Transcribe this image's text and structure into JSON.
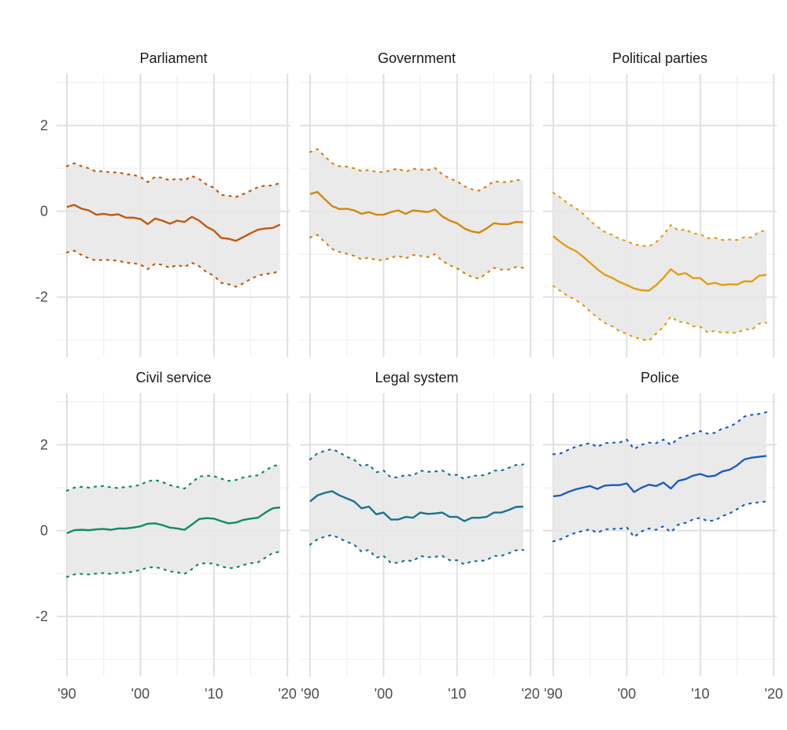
{
  "chart_data": {
    "type": "line",
    "layout": "facet grid, 2 rows x 3 columns, shared axes",
    "x_ticks": [
      1990,
      2000,
      2010,
      2020
    ],
    "x_tick_labels": [
      "'90",
      "'00",
      "'10",
      "'20"
    ],
    "x_minor_ticks": [
      1995,
      2005,
      2015
    ],
    "xlim": [
      1990,
      2020
    ],
    "y_ticks": [
      -2,
      0,
      2
    ],
    "y_tick_labels": [
      "-2",
      "0",
      "2"
    ],
    "y_minor_ticks": [
      -3,
      -1,
      1,
      3
    ],
    "ylim": [
      -3.4,
      3.2
    ],
    "grid": true,
    "band_color": "#e8e8e8",
    "grid_major_color": "#e0e0e0",
    "grid_minor_color": "#f0f0f0",
    "years": [
      1990,
      1991,
      1992,
      1993,
      1994,
      1995,
      1996,
      1997,
      1998,
      1999,
      2000,
      2001,
      2002,
      2003,
      2004,
      2005,
      2006,
      2007,
      2008,
      2009,
      2010,
      2011,
      2012,
      2013,
      2014,
      2015,
      2016,
      2017,
      2018,
      2019
    ],
    "panels": [
      {
        "title": "Parliament",
        "color": "#c05a10",
        "mean": [
          0.1,
          0.15,
          0.06,
          0.02,
          -0.08,
          -0.06,
          -0.09,
          -0.07,
          -0.15,
          -0.15,
          -0.18,
          -0.3,
          -0.17,
          -0.22,
          -0.29,
          -0.22,
          -0.25,
          -0.13,
          -0.22,
          -0.36,
          -0.45,
          -0.62,
          -0.64,
          -0.69,
          -0.6,
          -0.51,
          -0.43,
          -0.4,
          -0.39,
          -0.31
        ],
        "upper": [
          1.05,
          1.12,
          1.05,
          1.0,
          0.92,
          0.94,
          0.9,
          0.91,
          0.86,
          0.85,
          0.8,
          0.68,
          0.8,
          0.78,
          0.72,
          0.76,
          0.72,
          0.82,
          0.75,
          0.62,
          0.55,
          0.38,
          0.36,
          0.33,
          0.4,
          0.48,
          0.56,
          0.6,
          0.6,
          0.66
        ],
        "lower": [
          -0.96,
          -0.92,
          -1.02,
          -1.1,
          -1.15,
          -1.13,
          -1.14,
          -1.15,
          -1.2,
          -1.21,
          -1.24,
          -1.35,
          -1.22,
          -1.25,
          -1.32,
          -1.25,
          -1.3,
          -1.2,
          -1.28,
          -1.42,
          -1.5,
          -1.67,
          -1.7,
          -1.76,
          -1.68,
          -1.58,
          -1.5,
          -1.46,
          -1.45,
          -1.38
        ]
      },
      {
        "title": "Government",
        "color": "#d4870f",
        "mean": [
          0.4,
          0.45,
          0.28,
          0.12,
          0.05,
          0.06,
          0.02,
          -0.06,
          -0.02,
          -0.08,
          -0.08,
          -0.02,
          0.02,
          -0.06,
          0.02,
          0.0,
          -0.02,
          0.04,
          -0.12,
          -0.22,
          -0.28,
          -0.4,
          -0.47,
          -0.5,
          -0.4,
          -0.28,
          -0.3,
          -0.3,
          -0.25,
          -0.26
        ],
        "upper": [
          1.38,
          1.45,
          1.28,
          1.12,
          1.05,
          1.04,
          1.0,
          0.94,
          0.96,
          0.92,
          0.91,
          0.96,
          0.99,
          0.92,
          0.99,
          0.97,
          0.96,
          1.01,
          0.86,
          0.76,
          0.7,
          0.58,
          0.51,
          0.48,
          0.58,
          0.7,
          0.68,
          0.68,
          0.73,
          0.72
        ],
        "lower": [
          -0.61,
          -0.55,
          -0.72,
          -0.88,
          -0.95,
          -0.99,
          -1.04,
          -1.12,
          -1.08,
          -1.14,
          -1.14,
          -1.08,
          -1.04,
          -1.1,
          -1.02,
          -1.04,
          -1.07,
          -1.0,
          -1.16,
          -1.26,
          -1.33,
          -1.44,
          -1.53,
          -1.57,
          -1.45,
          -1.32,
          -1.36,
          -1.36,
          -1.3,
          -1.32
        ]
      },
      {
        "title": "Political parties",
        "color": "#e0a010",
        "mean": [
          -0.58,
          -0.72,
          -0.84,
          -0.92,
          -1.05,
          -1.2,
          -1.35,
          -1.48,
          -1.55,
          -1.65,
          -1.72,
          -1.8,
          -1.84,
          -1.85,
          -1.72,
          -1.55,
          -1.35,
          -1.48,
          -1.44,
          -1.56,
          -1.56,
          -1.7,
          -1.67,
          -1.72,
          -1.7,
          -1.71,
          -1.63,
          -1.64,
          -1.5,
          -1.48
        ],
        "upper": [
          0.43,
          0.32,
          0.18,
          0.08,
          -0.05,
          -0.22,
          -0.36,
          -0.48,
          -0.55,
          -0.64,
          -0.7,
          -0.77,
          -0.8,
          -0.82,
          -0.72,
          -0.55,
          -0.32,
          -0.45,
          -0.42,
          -0.52,
          -0.53,
          -0.63,
          -0.62,
          -0.67,
          -0.66,
          -0.67,
          -0.6,
          -0.61,
          -0.48,
          -0.44
        ],
        "lower": [
          -1.74,
          -1.86,
          -1.98,
          -2.06,
          -2.18,
          -2.33,
          -2.48,
          -2.6,
          -2.68,
          -2.79,
          -2.86,
          -2.94,
          -2.98,
          -3.02,
          -2.85,
          -2.7,
          -2.45,
          -2.58,
          -2.58,
          -2.68,
          -2.69,
          -2.82,
          -2.79,
          -2.83,
          -2.82,
          -2.84,
          -2.75,
          -2.76,
          -2.62,
          -2.6
        ]
      },
      {
        "title": "Civil service",
        "color": "#13896b",
        "mean": [
          -0.06,
          0.01,
          0.02,
          0.01,
          0.03,
          0.04,
          0.02,
          0.05,
          0.05,
          0.07,
          0.1,
          0.16,
          0.17,
          0.13,
          0.07,
          0.05,
          0.02,
          0.14,
          0.27,
          0.29,
          0.28,
          0.22,
          0.17,
          0.19,
          0.25,
          0.28,
          0.3,
          0.42,
          0.52,
          0.54
        ],
        "upper": [
          0.93,
          1.0,
          1.02,
          1.0,
          1.03,
          1.04,
          1.01,
          0.99,
          1.02,
          1.03,
          1.07,
          1.15,
          1.18,
          1.13,
          1.06,
          1.02,
          0.98,
          1.12,
          1.26,
          1.28,
          1.27,
          1.21,
          1.16,
          1.18,
          1.24,
          1.27,
          1.29,
          1.4,
          1.5,
          1.54
        ],
        "lower": [
          -1.08,
          -1.02,
          -1.01,
          -1.02,
          -1.0,
          -0.99,
          -1.01,
          -0.98,
          -0.99,
          -0.95,
          -0.92,
          -0.86,
          -0.85,
          -0.89,
          -0.95,
          -0.97,
          -1.01,
          -0.9,
          -0.77,
          -0.76,
          -0.77,
          -0.83,
          -0.88,
          -0.86,
          -0.8,
          -0.76,
          -0.74,
          -0.63,
          -0.52,
          -0.49
        ]
      },
      {
        "title": "Legal system",
        "color": "#1b7391",
        "mean": [
          0.68,
          0.82,
          0.88,
          0.92,
          0.82,
          0.75,
          0.68,
          0.52,
          0.56,
          0.38,
          0.42,
          0.26,
          0.26,
          0.32,
          0.3,
          0.42,
          0.39,
          0.4,
          0.42,
          0.32,
          0.32,
          0.22,
          0.3,
          0.3,
          0.32,
          0.42,
          0.42,
          0.48,
          0.55,
          0.56
        ],
        "upper": [
          1.66,
          1.8,
          1.86,
          1.9,
          1.82,
          1.72,
          1.65,
          1.5,
          1.54,
          1.36,
          1.4,
          1.24,
          1.24,
          1.3,
          1.28,
          1.4,
          1.37,
          1.38,
          1.4,
          1.3,
          1.3,
          1.2,
          1.28,
          1.28,
          1.3,
          1.4,
          1.4,
          1.46,
          1.53,
          1.54
        ],
        "lower": [
          -0.33,
          -0.2,
          -0.14,
          -0.1,
          -0.18,
          -0.26,
          -0.33,
          -0.49,
          -0.45,
          -0.63,
          -0.59,
          -0.75,
          -0.75,
          -0.69,
          -0.71,
          -0.59,
          -0.62,
          -0.61,
          -0.59,
          -0.69,
          -0.69,
          -0.79,
          -0.71,
          -0.71,
          -0.69,
          -0.59,
          -0.59,
          -0.53,
          -0.46,
          -0.45
        ]
      },
      {
        "title": "Police",
        "color": "#1c5cc0",
        "mean": [
          0.8,
          0.82,
          0.9,
          0.96,
          1.0,
          1.04,
          0.97,
          1.05,
          1.06,
          1.06,
          1.1,
          0.9,
          1.0,
          1.07,
          1.04,
          1.12,
          0.98,
          1.16,
          1.2,
          1.28,
          1.32,
          1.26,
          1.28,
          1.38,
          1.42,
          1.52,
          1.66,
          1.7,
          1.72,
          1.74
        ],
        "upper": [
          1.78,
          1.8,
          1.88,
          1.95,
          2.0,
          2.04,
          1.95,
          2.04,
          2.05,
          2.05,
          2.12,
          1.9,
          2.0,
          2.05,
          2.04,
          2.12,
          2.0,
          2.15,
          2.2,
          2.26,
          2.32,
          2.26,
          2.28,
          2.38,
          2.42,
          2.52,
          2.66,
          2.7,
          2.72,
          2.76
        ],
        "lower": [
          -0.25,
          -0.2,
          -0.12,
          -0.05,
          -0.01,
          0.03,
          -0.05,
          0.03,
          0.04,
          0.04,
          0.08,
          -0.15,
          -0.02,
          0.05,
          0.02,
          0.1,
          -0.04,
          0.14,
          0.18,
          0.26,
          0.3,
          0.22,
          0.24,
          0.34,
          0.4,
          0.5,
          0.6,
          0.64,
          0.66,
          0.68
        ]
      }
    ]
  }
}
